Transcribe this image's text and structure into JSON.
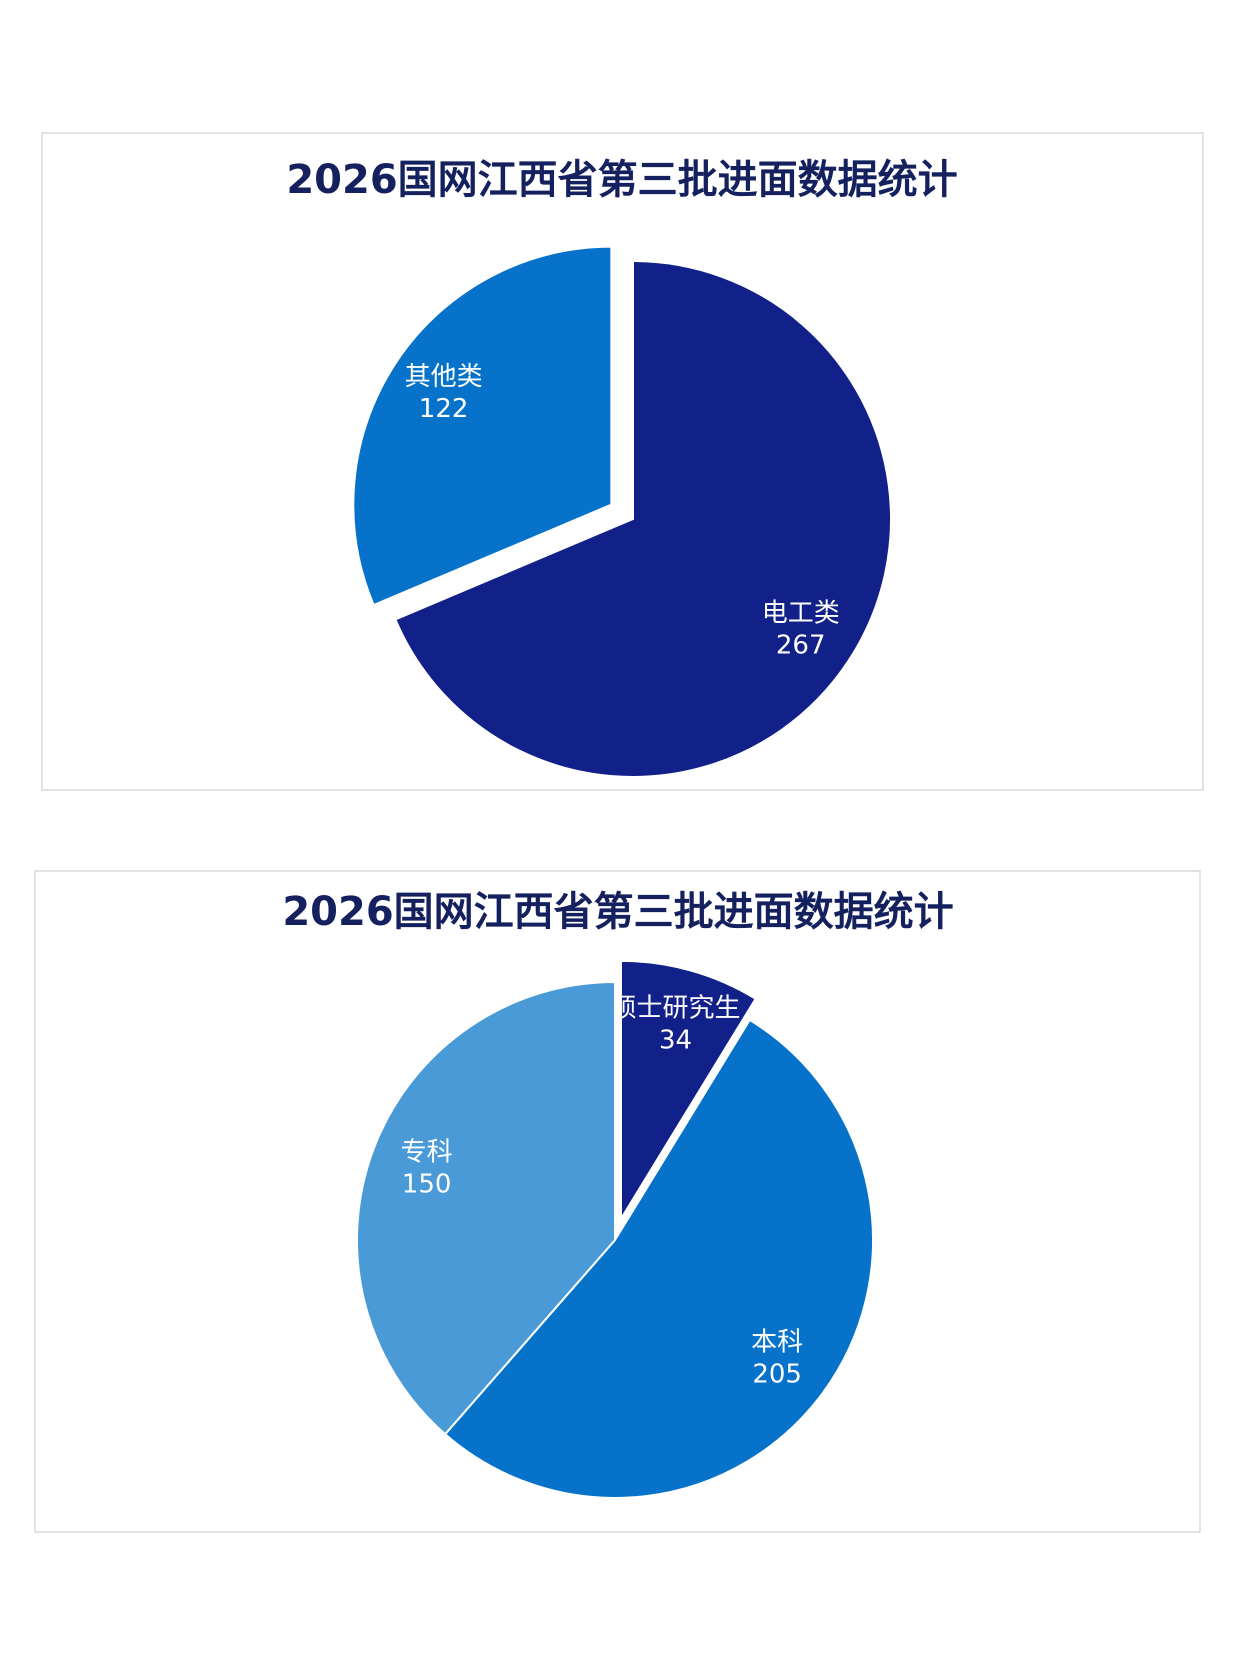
{
  "chart_data": [
    {
      "type": "pie",
      "title": "2026国网江西省第三批进面数据统计",
      "categories": [
        "电工类",
        "其他类"
      ],
      "values": [
        267,
        122
      ],
      "colors": [
        "#12218a",
        "#0672c9"
      ]
    },
    {
      "type": "pie",
      "title": "2026国网江西省第三批进面数据统计",
      "categories": [
        "硕士研究生",
        "本科",
        "专科"
      ],
      "values": [
        34,
        205,
        150
      ],
      "colors": [
        "#12218a",
        "#0672c9",
        "#4a9ad8"
      ]
    }
  ]
}
